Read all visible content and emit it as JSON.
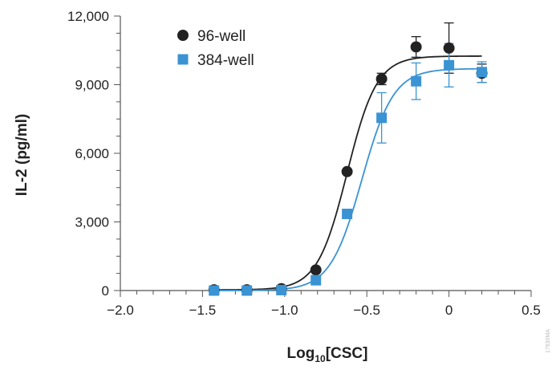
{
  "chart_data": {
    "type": "scatter",
    "xlabel_main": "Log",
    "xlabel_sub": "10",
    "xlabel_tail": "[CSC]",
    "ylabel": "IL-2 (pg/ml)",
    "xlim": [
      -2.0,
      0.5
    ],
    "ylim": [
      0,
      12000
    ],
    "x_ticks": [
      -2.0,
      -1.5,
      -1.0,
      -0.5,
      0,
      0.5
    ],
    "x_tick_labels": [
      "−2.0",
      "−1.5",
      "−1.0",
      "−0.5",
      "0",
      "0.5"
    ],
    "y_ticks": [
      0,
      3000,
      6000,
      9000,
      12000
    ],
    "y_tick_labels": [
      "0",
      "3,000",
      "6,000",
      "9,000",
      "12,000"
    ],
    "legend_position": "top-left",
    "grid": false,
    "series": [
      {
        "name": "96-well",
        "marker": "circle",
        "color": "#222222",
        "points": [
          {
            "x": -1.43,
            "y": 30,
            "err": 0
          },
          {
            "x": -1.23,
            "y": 30,
            "err": 0
          },
          {
            "x": -1.02,
            "y": 80,
            "err": 0
          },
          {
            "x": -0.81,
            "y": 900,
            "err": 0
          },
          {
            "x": -0.62,
            "y": 5200,
            "err": 0
          },
          {
            "x": -0.41,
            "y": 9250,
            "err": 250
          },
          {
            "x": -0.2,
            "y": 10650,
            "err": 450
          },
          {
            "x": 0.0,
            "y": 10600,
            "err": 1100
          },
          {
            "x": 0.2,
            "y": 9500,
            "err": 400
          }
        ],
        "fit": {
          "bottom": 30,
          "top": 10250,
          "ec50_log": -0.62,
          "hill": 4.8
        }
      },
      {
        "name": "384-well",
        "marker": "square",
        "color": "#3a93d3",
        "points": [
          {
            "x": -1.43,
            "y": 0,
            "err": 0
          },
          {
            "x": -1.23,
            "y": 0,
            "err": 0
          },
          {
            "x": -1.02,
            "y": 20,
            "err": 0
          },
          {
            "x": -0.81,
            "y": 450,
            "err": 0
          },
          {
            "x": -0.62,
            "y": 3350,
            "err": 0
          },
          {
            "x": -0.41,
            "y": 7550,
            "err": 1100
          },
          {
            "x": -0.2,
            "y": 9150,
            "err": 800
          },
          {
            "x": 0.0,
            "y": 9850,
            "err": 950
          },
          {
            "x": 0.2,
            "y": 9550,
            "err": 450
          }
        ],
        "fit": {
          "bottom": 0,
          "top": 9700,
          "ec50_log": -0.53,
          "hill": 4.5
        }
      }
    ]
  },
  "watermark": "17930MA"
}
